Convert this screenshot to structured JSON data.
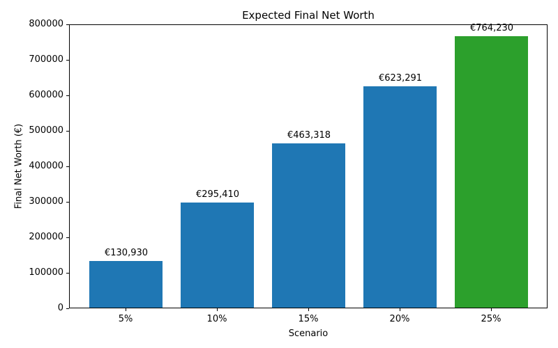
{
  "chart_data": {
    "type": "bar",
    "title": "Expected Final Net Worth",
    "xlabel": "Scenario",
    "ylabel": "Final Net Worth (€)",
    "categories": [
      "5%",
      "10%",
      "15%",
      "20%",
      "25%"
    ],
    "values": [
      130930,
      295410,
      463318,
      623291,
      764230
    ],
    "value_labels": [
      "€130,930",
      "€295,410",
      "€463,318",
      "€623,291",
      "€764,230"
    ],
    "bar_colors": [
      "#1f77b4",
      "#1f77b4",
      "#1f77b4",
      "#1f77b4",
      "#2ca02c"
    ],
    "ylim": [
      0,
      800000
    ],
    "ytick_values": [
      0,
      100000,
      200000,
      300000,
      400000,
      500000,
      600000,
      700000,
      800000
    ],
    "ytick_labels": [
      "0",
      "100000",
      "200000",
      "300000",
      "400000",
      "500000",
      "600000",
      "700000",
      "800000"
    ],
    "grid": false,
    "legend": "none",
    "spines": "full-box"
  }
}
